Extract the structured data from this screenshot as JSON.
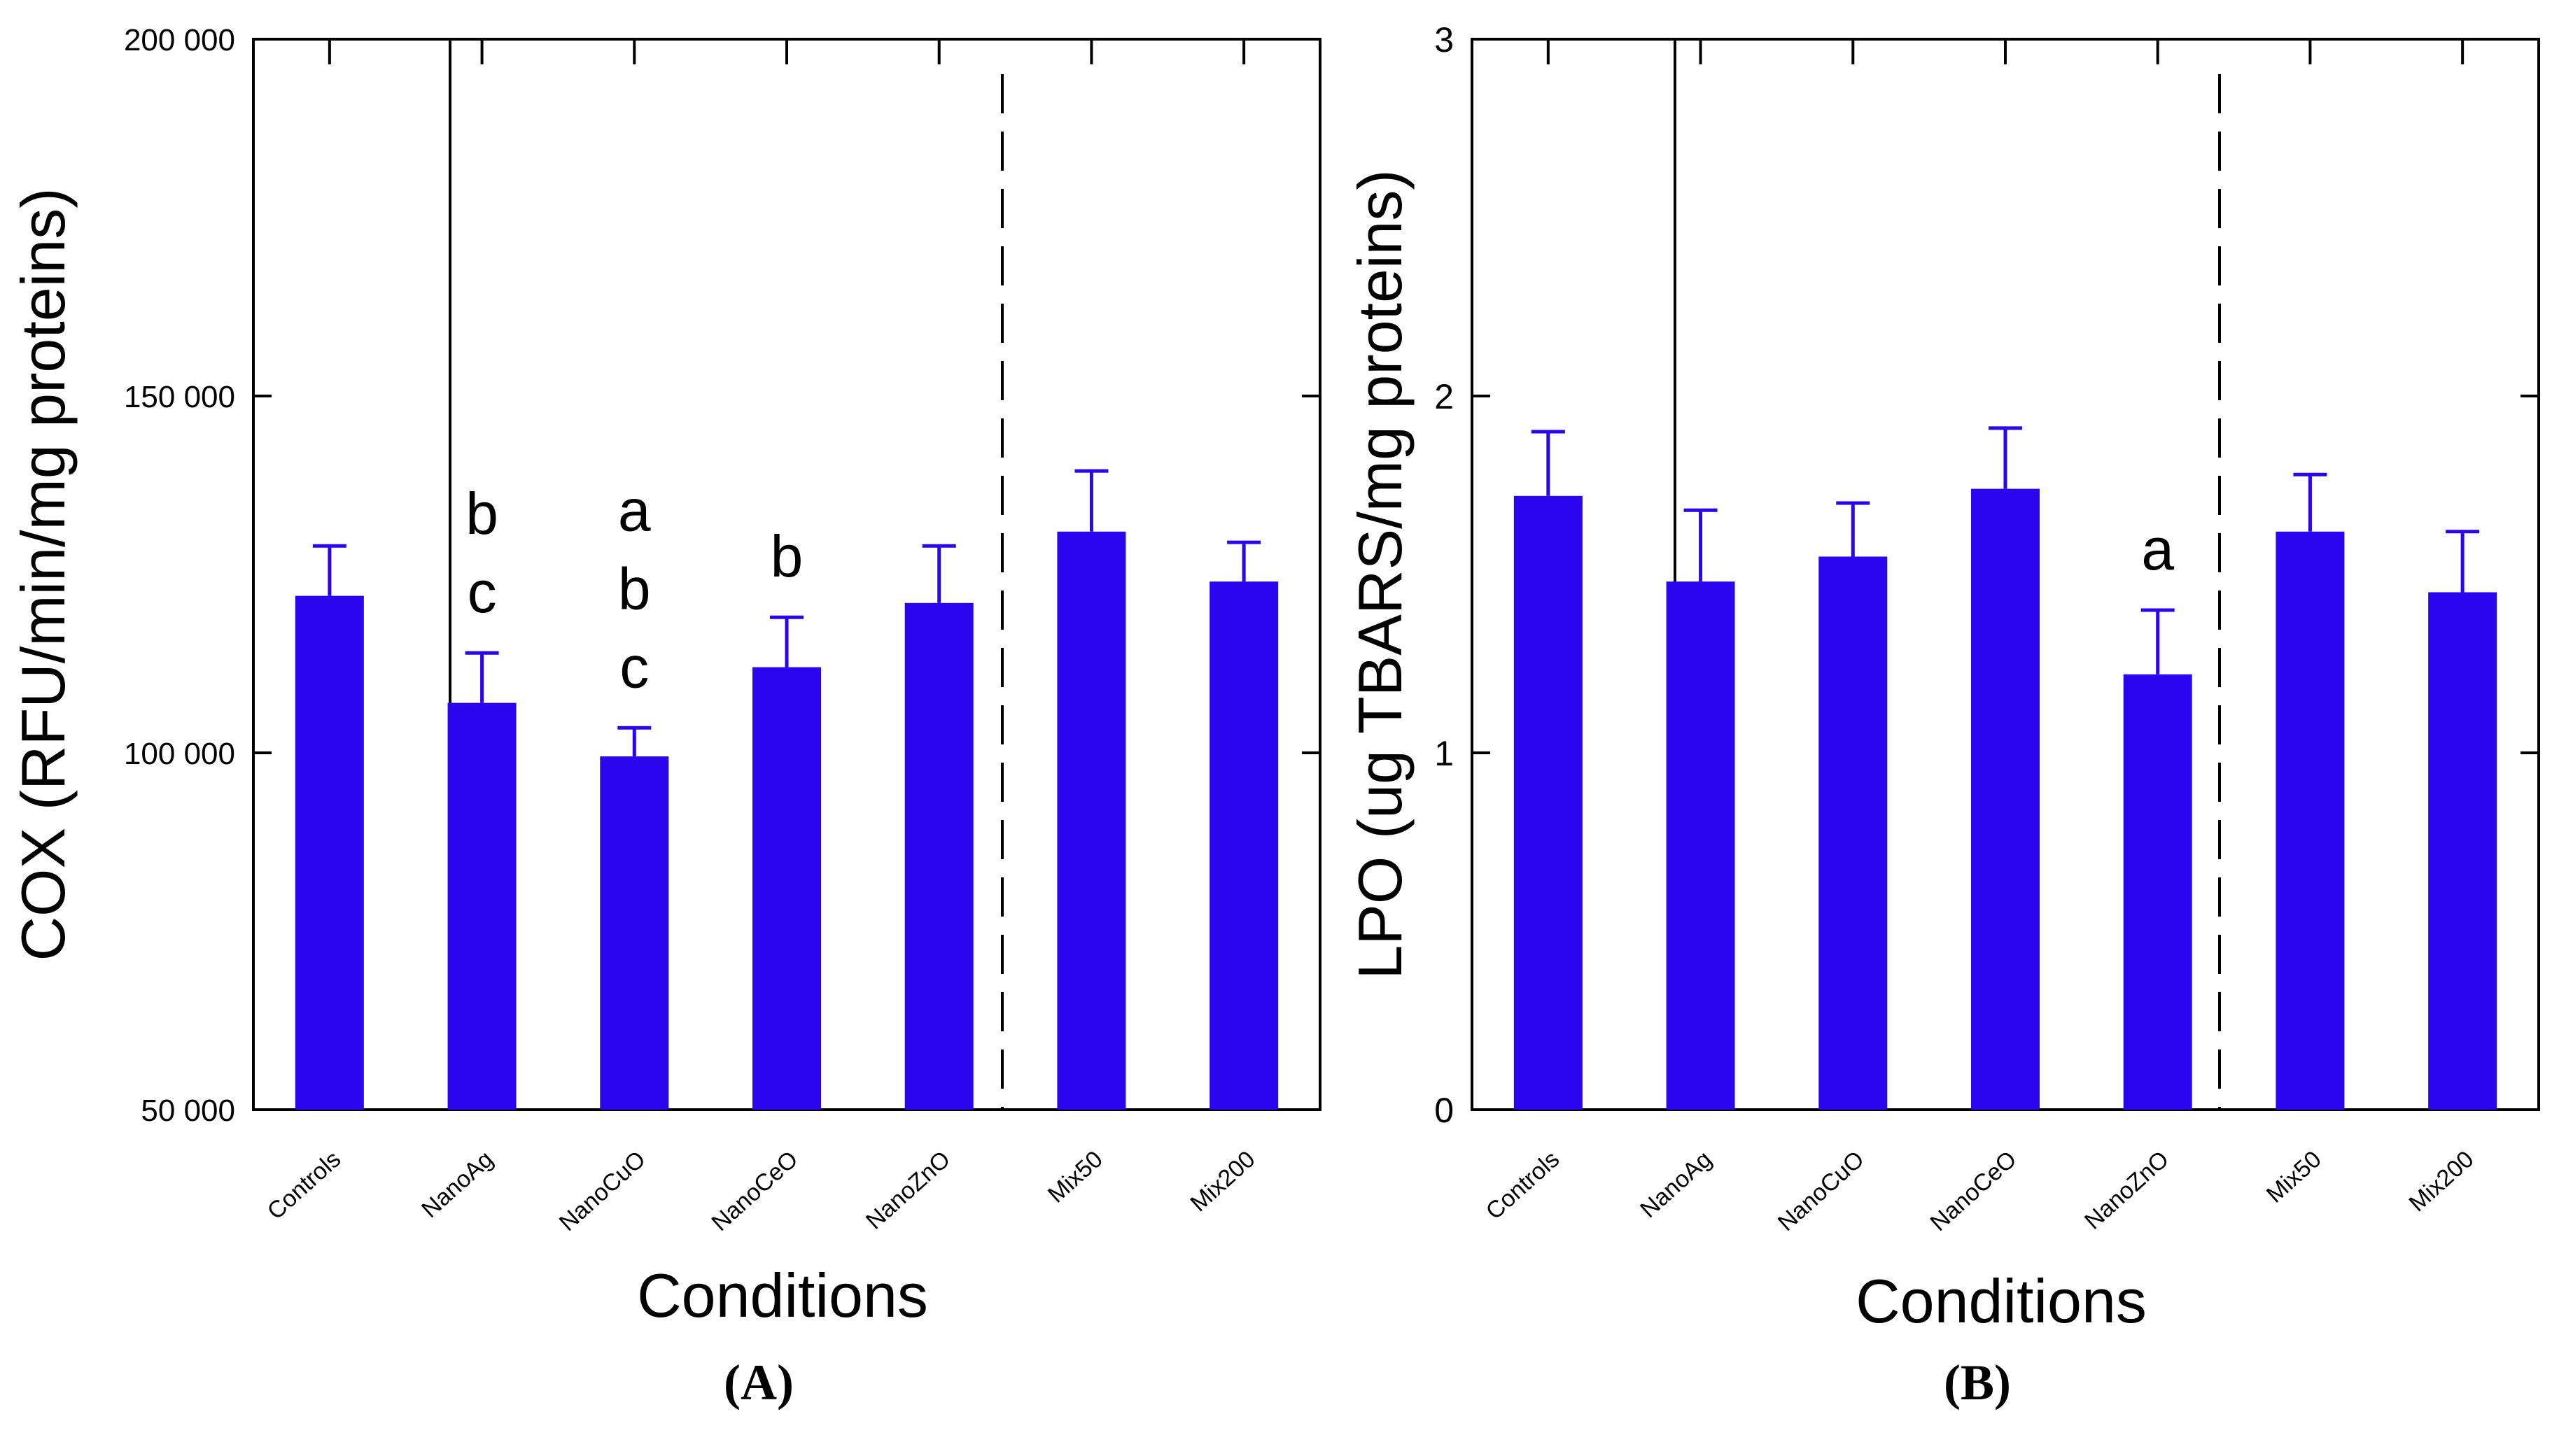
{
  "bar_color": "#2a05ee",
  "chart_data": [
    {
      "type": "bar",
      "panel_label": "(A)",
      "xlabel": "Conditions",
      "ylabel": "COX (RFU/min/mg proteins)",
      "ylim": [
        50000,
        200000
      ],
      "yticks": [
        50000,
        100000,
        150000,
        200000
      ],
      "ytick_labels": [
        "50 000",
        "100 000",
        "150 000",
        "200 000"
      ],
      "categories": [
        "Controls",
        "NanoAg",
        "NanoCuO",
        "NanoCeO",
        "NanoZnO",
        "Mix50",
        "Mix200"
      ],
      "values": [
        122000,
        107000,
        99500,
        112000,
        121000,
        131000,
        124000
      ],
      "errors": [
        7000,
        7000,
        4000,
        7000,
        8000,
        8500,
        5500
      ],
      "annotations": [
        [],
        [
          "b",
          "c"
        ],
        [
          "a",
          "b",
          "c"
        ],
        [
          "b"
        ],
        [],
        [],
        []
      ]
    },
    {
      "type": "bar",
      "panel_label": "(B)",
      "xlabel": "Conditions",
      "ylabel": "LPO (ug TBARS/mg proteins)",
      "ylim": [
        0,
        3
      ],
      "yticks": [
        0,
        1,
        2,
        3
      ],
      "ytick_labels": [
        "0",
        "1",
        "2",
        "3"
      ],
      "categories": [
        "Controls",
        "NanoAg",
        "NanoCuO",
        "NanoCeO",
        "NanoZnO",
        "Mix50",
        "Mix200"
      ],
      "values": [
        1.72,
        1.48,
        1.55,
        1.74,
        1.22,
        1.62,
        1.45
      ],
      "errors": [
        0.18,
        0.2,
        0.15,
        0.17,
        0.18,
        0.16,
        0.17
      ],
      "annotations": [
        [],
        [],
        [],
        [],
        [
          "a"
        ],
        [],
        []
      ]
    }
  ]
}
